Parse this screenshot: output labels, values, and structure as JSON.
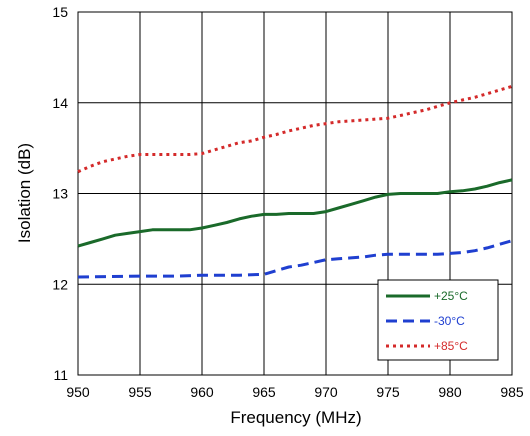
{
  "chart_data": {
    "type": "line",
    "title": "",
    "xlabel": "Frequency (MHz)",
    "ylabel": "Isolation (dB)",
    "xlim": [
      950,
      985
    ],
    "ylim": [
      11,
      15
    ],
    "xticks": [
      950,
      955,
      960,
      965,
      970,
      975,
      980,
      985
    ],
    "yticks": [
      11,
      12,
      13,
      14,
      15
    ],
    "grid": true,
    "legend_position": "bottom-right",
    "series": [
      {
        "name": "+25°C",
        "color": "#1a6a2a",
        "style": "solid",
        "points": [
          [
            950,
            12.42
          ],
          [
            951,
            12.46
          ],
          [
            952,
            12.5
          ],
          [
            953,
            12.54
          ],
          [
            954,
            12.56
          ],
          [
            955,
            12.58
          ],
          [
            956,
            12.6
          ],
          [
            958,
            12.6
          ],
          [
            959,
            12.6
          ],
          [
            960,
            12.62
          ],
          [
            961,
            12.65
          ],
          [
            962,
            12.68
          ],
          [
            963,
            12.72
          ],
          [
            964,
            12.75
          ],
          [
            965,
            12.77
          ],
          [
            966,
            12.77
          ],
          [
            967,
            12.78
          ],
          [
            968,
            12.78
          ],
          [
            969,
            12.78
          ],
          [
            970,
            12.8
          ],
          [
            971,
            12.84
          ],
          [
            972,
            12.88
          ],
          [
            973,
            12.92
          ],
          [
            974,
            12.96
          ],
          [
            975,
            12.99
          ],
          [
            976,
            13.0
          ],
          [
            977,
            13.0
          ],
          [
            978,
            13.0
          ],
          [
            979,
            13.0
          ],
          [
            980,
            13.02
          ],
          [
            981,
            13.03
          ],
          [
            982,
            13.05
          ],
          [
            983,
            13.08
          ],
          [
            984,
            13.12
          ],
          [
            985,
            13.15
          ]
        ]
      },
      {
        "name": "-30°C",
        "color": "#1f3fd0",
        "style": "dashed",
        "points": [
          [
            950,
            12.08
          ],
          [
            955,
            12.09
          ],
          [
            958,
            12.09
          ],
          [
            960,
            12.1
          ],
          [
            963,
            12.1
          ],
          [
            965,
            12.11
          ],
          [
            966,
            12.15
          ],
          [
            967,
            12.19
          ],
          [
            968,
            12.21
          ],
          [
            969,
            12.24
          ],
          [
            970,
            12.27
          ],
          [
            971,
            12.28
          ],
          [
            972,
            12.29
          ],
          [
            973,
            12.3
          ],
          [
            974,
            12.32
          ],
          [
            975,
            12.33
          ],
          [
            977,
            12.33
          ],
          [
            979,
            12.33
          ],
          [
            980,
            12.34
          ],
          [
            981,
            12.35
          ],
          [
            982,
            12.37
          ],
          [
            983,
            12.4
          ],
          [
            984,
            12.44
          ],
          [
            985,
            12.48
          ]
        ]
      },
      {
        "name": "+85°C",
        "color": "#d42a2a",
        "style": "dotted",
        "points": [
          [
            950,
            13.24
          ],
          [
            951,
            13.3
          ],
          [
            952,
            13.35
          ],
          [
            953,
            13.38
          ],
          [
            954,
            13.41
          ],
          [
            955,
            13.43
          ],
          [
            956,
            13.43
          ],
          [
            958,
            13.43
          ],
          [
            959,
            13.43
          ],
          [
            960,
            13.44
          ],
          [
            961,
            13.48
          ],
          [
            962,
            13.52
          ],
          [
            963,
            13.56
          ],
          [
            964,
            13.58
          ],
          [
            965,
            13.62
          ],
          [
            966,
            13.65
          ],
          [
            967,
            13.69
          ],
          [
            968,
            13.72
          ],
          [
            969,
            13.75
          ],
          [
            970,
            13.77
          ],
          [
            971,
            13.79
          ],
          [
            972,
            13.8
          ],
          [
            973,
            13.81
          ],
          [
            974,
            13.82
          ],
          [
            975,
            13.83
          ],
          [
            976,
            13.86
          ],
          [
            977,
            13.89
          ],
          [
            978,
            13.92
          ],
          [
            979,
            13.96
          ],
          [
            980,
            14.0
          ],
          [
            981,
            14.03
          ],
          [
            982,
            14.06
          ],
          [
            983,
            14.1
          ],
          [
            984,
            14.14
          ],
          [
            985,
            14.18
          ]
        ]
      }
    ]
  }
}
